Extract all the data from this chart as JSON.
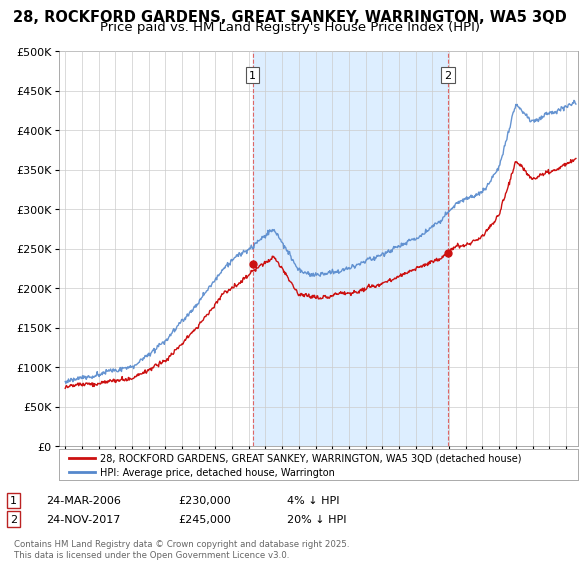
{
  "title_line1": "28, ROCKFORD GARDENS, GREAT SANKEY, WARRINGTON, WA5 3QD",
  "title_line2": "Price paid vs. HM Land Registry's House Price Index (HPI)",
  "ylim": [
    0,
    500000
  ],
  "yticks": [
    0,
    50000,
    100000,
    150000,
    200000,
    250000,
    300000,
    350000,
    400000,
    450000,
    500000
  ],
  "ytick_labels": [
    "£0",
    "£50K",
    "£100K",
    "£150K",
    "£200K",
    "£250K",
    "£300K",
    "£350K",
    "£400K",
    "£450K",
    "£500K"
  ],
  "hpi_color": "#5588cc",
  "price_color": "#cc1111",
  "sale1_x": 2006.23,
  "sale1_y": 230000,
  "sale2_x": 2017.92,
  "sale2_y": 245000,
  "vline_color": "#dd6666",
  "shade_color": "#ddeeff",
  "legend_price": "28, ROCKFORD GARDENS, GREAT SANKEY, WARRINGTON, WA5 3QD (detached house)",
  "legend_hpi": "HPI: Average price, detached house, Warrington",
  "footnote1_col1": "1",
  "footnote1_col2": "24-MAR-2006",
  "footnote1_col3": "£230,000",
  "footnote1_col4": "4% ↓ HPI",
  "footnote2_col1": "2",
  "footnote2_col2": "24-NOV-2017",
  "footnote2_col3": "£245,000",
  "footnote2_col4": "20% ↓ HPI",
  "copyright": "Contains HM Land Registry data © Crown copyright and database right 2025.\nThis data is licensed under the Open Government Licence v3.0.",
  "bg_color": "#ffffff",
  "plot_bg": "#ffffff",
  "grid_color": "#cccccc",
  "title_fontsize": 10.5,
  "subtitle_fontsize": 9.5,
  "xlim_left": 1994.6,
  "xlim_right": 2025.7
}
